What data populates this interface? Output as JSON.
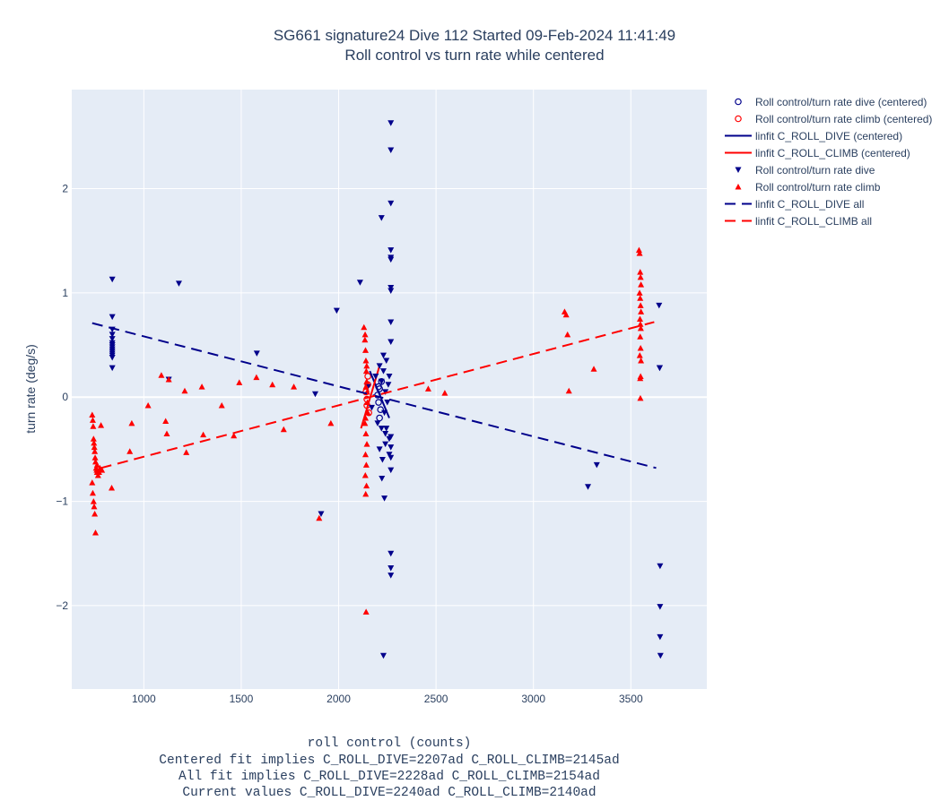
{
  "title": {
    "line1": "SG661 signature24 Dive 112 Started 09-Feb-2024 11:41:49",
    "line2": "Roll control vs turn rate while centered"
  },
  "xlabel": {
    "line1": "roll control (counts)",
    "line2": "Centered fit implies C_ROLL_DIVE=2207ad C_ROLL_CLIMB=2145ad",
    "line3": "All fit implies C_ROLL_DIVE=2228ad C_ROLL_CLIMB=2154ad",
    "line4": "Current values C_ROLL_DIVE=2240ad C_ROLL_CLIMB=2140ad"
  },
  "ylabel": "turn rate (deg/s)",
  "colors": {
    "plot_bg": "#E5ECF6",
    "grid": "#ffffff",
    "dive": "#00008B",
    "climb": "#FF0000",
    "text": "#2a3f5f"
  },
  "chart_data": {
    "type": "scatter",
    "xlim": [
      630,
      3890
    ],
    "ylim": [
      -2.8,
      2.95
    ],
    "xticks": [
      1000,
      1500,
      2000,
      2500,
      3000,
      3500
    ],
    "xticklabels": [
      "1000",
      "1500",
      "2000",
      "2500",
      "3000",
      "3500"
    ],
    "yticks": [
      -2,
      -1,
      0,
      1,
      2
    ],
    "yticklabels": [
      "−2",
      "−1",
      "0",
      "1",
      "2"
    ],
    "grid": true,
    "legend_position": "right",
    "series": [
      {
        "name": "Roll control/turn rate dive (centered)",
        "kind": "marker",
        "marker": "circle-open",
        "color": "#00008B",
        "x": [
          2200,
          2205,
          2210,
          2215,
          2220,
          2210,
          2205
        ],
        "y": [
          0.02,
          -0.05,
          0.08,
          -0.12,
          0.15,
          -0.2,
          0.1
        ]
      },
      {
        "name": "Roll control/turn rate climb (centered)",
        "kind": "marker",
        "marker": "circle-open",
        "color": "#FF0000",
        "x": [
          2140,
          2145,
          2150,
          2155,
          2150,
          2145
        ],
        "y": [
          0.05,
          -0.08,
          0.12,
          -0.15,
          0.2,
          -0.02
        ]
      },
      {
        "name": "linfit C_ROLL_DIVE (centered)",
        "kind": "line",
        "dash": "solid",
        "color": "#00008B",
        "x": [
          2160,
          2260
        ],
        "y": [
          0.25,
          -0.2
        ]
      },
      {
        "name": "linfit C_ROLL_CLIMB (centered)",
        "kind": "line",
        "dash": "solid",
        "color": "#FF0000",
        "x": [
          2115,
          2210
        ],
        "y": [
          -0.3,
          0.3
        ]
      },
      {
        "name": "Roll control/turn rate dive",
        "kind": "marker",
        "marker": "triangle-down",
        "color": "#00008B",
        "x": [
          838,
          838,
          838,
          838,
          838,
          838,
          838,
          838,
          838,
          838,
          838,
          838,
          838,
          838,
          1180,
          1128,
          1580,
          1880,
          1910,
          1990,
          2110,
          2150,
          2170,
          2190,
          2200,
          2210,
          2220,
          2220,
          2230,
          2235,
          2240,
          2240,
          2245,
          2250,
          2255,
          2260,
          2260,
          2210,
          2225,
          2240,
          2260,
          2230,
          2245,
          2222,
          2268,
          2268,
          2268,
          2268,
          2268,
          2268,
          2268,
          2268,
          2268,
          2268,
          2268,
          2268,
          2268,
          2268,
          2268,
          2268,
          2268,
          2220,
          2235,
          2230,
          3280,
          3325,
          3645,
          3648,
          3650,
          3650,
          3650,
          3652,
          3648
        ],
        "y": [
          1.13,
          0.77,
          0.65,
          0.6,
          0.56,
          0.52,
          0.5,
          0.48,
          0.46,
          0.44,
          0.42,
          0.4,
          0.38,
          0.28,
          1.09,
          0.17,
          0.42,
          0.03,
          -1.12,
          0.83,
          1.1,
          0.1,
          -0.1,
          0.2,
          -0.25,
          0.3,
          -0.3,
          0.15,
          0.25,
          -0.15,
          0.05,
          -0.35,
          0.35,
          -0.05,
          0.12,
          -0.4,
          0.2,
          -0.5,
          -0.6,
          -0.45,
          -0.55,
          0.4,
          -0.3,
          -0.78,
          2.63,
          2.37,
          1.86,
          1.41,
          1.34,
          1.32,
          1.05,
          1.02,
          0.72,
          0.53,
          -0.38,
          -0.48,
          -0.58,
          -0.7,
          -1.5,
          -1.64,
          -1.71,
          1.72,
          -0.97,
          -2.48,
          -0.86,
          -0.65,
          0.88,
          0.28,
          -1.62,
          -2.01,
          -2.3,
          -2.48,
          0.28
        ],
        "n_shown": 73
      },
      {
        "name": "Roll control/turn rate climb",
        "kind": "marker",
        "marker": "triangle-up",
        "color": "#FF0000",
        "x": [
          735,
          738,
          740,
          742,
          744,
          746,
          748,
          750,
          752,
          755,
          758,
          760,
          765,
          770,
          775,
          780,
          735,
          738,
          742,
          745,
          748,
          752,
          760,
          785,
          835,
          928,
          938,
          1022,
          1090,
          1112,
          1118,
          1128,
          1210,
          1218,
          1298,
          1305,
          1400,
          1462,
          1490,
          1578,
          1660,
          1718,
          1770,
          1960,
          1900,
          2130,
          2135,
          2138,
          2140,
          2142,
          2144,
          2146,
          2148,
          2150,
          2135,
          2140,
          2145,
          2138,
          2142,
          2137,
          2143,
          2139,
          2141,
          2136,
          2144,
          2138,
          2140,
          2460,
          2545,
          3160,
          3168,
          3175,
          3182,
          3310,
          3542,
          3545,
          3548,
          3550,
          3552,
          3545,
          3548,
          3550,
          3552,
          3547,
          3549,
          3551,
          3548,
          3550,
          3546,
          3552,
          3550,
          3548,
          3549
        ],
        "y": [
          -0.17,
          -0.22,
          -0.28,
          -0.4,
          -0.44,
          -0.48,
          -0.52,
          -0.58,
          -0.62,
          -0.68,
          -0.7,
          -0.72,
          -0.75,
          -0.72,
          -0.68,
          -0.27,
          -0.82,
          -0.92,
          -1.0,
          -1.05,
          -1.12,
          -1.3,
          -0.65,
          -0.7,
          -0.87,
          -0.52,
          -0.25,
          -0.08,
          0.21,
          -0.23,
          -0.35,
          0.17,
          0.06,
          -0.53,
          0.1,
          -0.36,
          -0.08,
          -0.37,
          0.14,
          0.19,
          0.12,
          -0.31,
          0.1,
          -0.25,
          -1.16,
          0.67,
          0.55,
          0.45,
          0.35,
          0.25,
          0.15,
          0.05,
          -0.05,
          -0.15,
          -0.25,
          -0.35,
          -0.45,
          -0.55,
          -0.65,
          -0.75,
          -0.85,
          -0.93,
          -2.06,
          0.6,
          0.3,
          -0.2,
          0.1,
          0.08,
          0.04,
          0.82,
          0.79,
          0.6,
          0.06,
          0.27,
          1.41,
          1.38,
          1.2,
          1.15,
          1.08,
          1.0,
          0.95,
          0.88,
          0.82,
          0.75,
          0.7,
          0.66,
          0.58,
          0.47,
          0.4,
          0.35,
          0.2,
          0.18,
          -0.01
        ],
        "n_shown": 93
      },
      {
        "name": "linfit C_ROLL_DIVE all",
        "kind": "line",
        "dash": "dash",
        "color": "#00008B",
        "x": [
          735,
          3630
        ],
        "y": [
          0.71,
          -0.68
        ]
      },
      {
        "name": "linfit C_ROLL_CLIMB all",
        "kind": "line",
        "dash": "dash",
        "color": "#FF0000",
        "x": [
          780,
          3620
        ],
        "y": [
          -0.68,
          0.72
        ]
      }
    ]
  }
}
